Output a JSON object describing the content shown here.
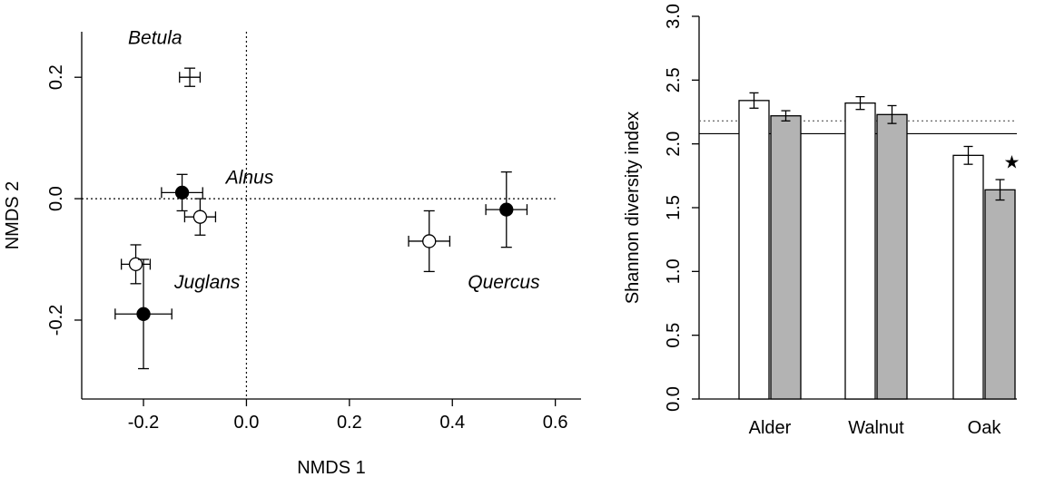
{
  "chart_data": [
    {
      "type": "scatter",
      "xlabel": "NMDS 1",
      "ylabel": "NMDS 2",
      "xlim": [
        -0.32,
        0.65
      ],
      "ylim": [
        -0.33,
        0.275
      ],
      "xticks": [
        -0.2,
        0.0,
        0.2,
        0.4,
        0.6
      ],
      "xtick_labels": [
        "-0.2",
        "0.0",
        "0.2",
        "0.4",
        "0.6"
      ],
      "yticks": [
        -0.2,
        0.0,
        0.2
      ],
      "ytick_labels": [
        "-0.2",
        "0.0",
        "0.2"
      ],
      "reference_lines": {
        "x": 0.0,
        "y": 0.0,
        "style": "dotted"
      },
      "points": [
        {
          "x": -0.11,
          "y": 0.2,
          "xerr": 0.02,
          "yerr": 0.015,
          "fill": "none"
        },
        {
          "x": -0.125,
          "y": 0.01,
          "xerr": 0.04,
          "yerr": 0.03,
          "fill": "black"
        },
        {
          "x": -0.09,
          "y": -0.03,
          "xerr": 0.03,
          "yerr": 0.03,
          "fill": "white"
        },
        {
          "x": -0.215,
          "y": -0.108,
          "xerr": 0.028,
          "yerr": 0.032,
          "fill": "white"
        },
        {
          "x": -0.2,
          "y": -0.19,
          "xerr": 0.055,
          "yerr": 0.09,
          "fill": "black"
        },
        {
          "x": 0.355,
          "y": -0.07,
          "xerr": 0.04,
          "yerr": 0.05,
          "fill": "white"
        },
        {
          "x": 0.505,
          "y": -0.018,
          "xerr": 0.04,
          "yerr": 0.062,
          "fill": "black"
        }
      ],
      "annotations": [
        {
          "text": "Betula",
          "x": -0.23,
          "y": 0.255
        },
        {
          "text": "Alnus",
          "x": -0.04,
          "y": 0.025
        },
        {
          "text": "Juglans",
          "x": -0.14,
          "y": -0.148
        },
        {
          "text": "Quercus",
          "x": 0.43,
          "y": -0.148
        }
      ]
    },
    {
      "type": "bar",
      "xlabel": "",
      "ylabel": "Shannon diversity index",
      "ylim": [
        0.0,
        3.0
      ],
      "yticks": [
        0.0,
        0.5,
        1.0,
        1.5,
        2.0,
        2.5,
        3.0
      ],
      "ytick_labels": [
        "0.0",
        "0.5",
        "1.0",
        "1.5",
        "2.0",
        "2.5",
        "3.0"
      ],
      "categories": [
        "Alder",
        "Walnut",
        "Oak"
      ],
      "series": [
        {
          "values": [
            2.34,
            2.32,
            1.91
          ],
          "errors": [
            0.06,
            0.05,
            0.07
          ],
          "color": "#ffffff"
        },
        {
          "values": [
            2.22,
            2.23,
            1.64
          ],
          "errors": [
            0.04,
            0.07,
            0.08
          ],
          "color": "#b3b3b3"
        }
      ],
      "reference_lines": [
        {
          "y": 2.18,
          "style": "dotted"
        },
        {
          "y": 2.08,
          "style": "solid"
        }
      ],
      "marker": {
        "text": "★",
        "category": "Oak",
        "series": 1,
        "y": 1.86
      }
    }
  ]
}
